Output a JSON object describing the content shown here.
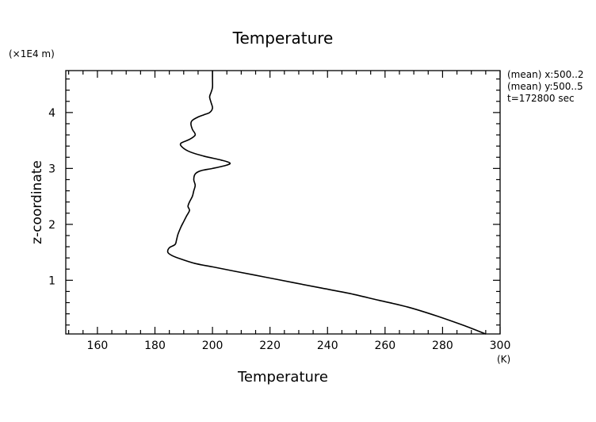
{
  "chart_data": {
    "type": "line",
    "title": "Temperature",
    "xlabel": "Temperature",
    "xunit": "(K)",
    "ylabel": "z-coordinate",
    "yunit": "(×1E4 m)",
    "xlim": [
      149,
      300
    ],
    "ylim": [
      0.04,
      4.75
    ],
    "xticks": [
      160,
      180,
      200,
      220,
      240,
      260,
      280,
      300
    ],
    "yticks": [
      1,
      2,
      3,
      4
    ],
    "grid": false,
    "legend": "none",
    "annotations": [
      "(mean) x:500..2",
      "(mean) y:500..5",
      "t=172800 sec"
    ],
    "series": [
      {
        "color": "#000000",
        "x": [
          295,
          288,
          278,
          268,
          258,
          248,
          238,
          228,
          218,
          208,
          200,
          194,
          189,
          186,
          184.5,
          185,
          187,
          187.5,
          188,
          189,
          190,
          191,
          192,
          191.5,
          192,
          193,
          193.5,
          194,
          193.5,
          194,
          196,
          200,
          205,
          206,
          203,
          197,
          192,
          189.5,
          189,
          192,
          194,
          193,
          192.5,
          193,
          195,
          197,
          199,
          200,
          199.5,
          199,
          199.5,
          200,
          200,
          200
        ],
        "y": [
          0.04,
          0.18,
          0.36,
          0.52,
          0.64,
          0.76,
          0.86,
          0.96,
          1.06,
          1.16,
          1.24,
          1.3,
          1.38,
          1.44,
          1.5,
          1.58,
          1.64,
          1.72,
          1.82,
          1.95,
          2.05,
          2.15,
          2.25,
          2.32,
          2.4,
          2.5,
          2.6,
          2.7,
          2.8,
          2.9,
          2.96,
          3.0,
          3.06,
          3.1,
          3.15,
          3.22,
          3.3,
          3.38,
          3.45,
          3.52,
          3.6,
          3.7,
          3.8,
          3.86,
          3.92,
          3.96,
          4.0,
          4.08,
          4.18,
          4.28,
          4.36,
          4.45,
          4.6,
          4.75
        ]
      }
    ]
  }
}
